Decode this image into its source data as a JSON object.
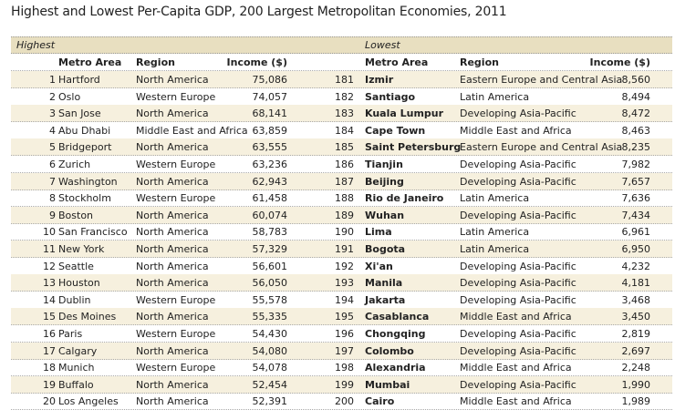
{
  "title": "Highest and Lowest Per-Capita GDP, 200 Largest Metropolitan Economies, 2011",
  "colors": {
    "band": "#e8dfc0",
    "shade": "#f6f0de"
  },
  "highest": {
    "label": "Highest",
    "headers": {
      "metro": "Metro Area",
      "region": "Region",
      "income": "Income ($)"
    },
    "rows": [
      {
        "rank": "1",
        "metro": "Hartford",
        "region": "North America",
        "income": "75,086"
      },
      {
        "rank": "2",
        "metro": "Oslo",
        "region": "Western Europe",
        "income": "74,057"
      },
      {
        "rank": "3",
        "metro": "San Jose",
        "region": "North America",
        "income": "68,141"
      },
      {
        "rank": "4",
        "metro": "Abu Dhabi",
        "region": "Middle East and Africa",
        "income": "63,859"
      },
      {
        "rank": "5",
        "metro": "Bridgeport",
        "region": "North America",
        "income": "63,555"
      },
      {
        "rank": "6",
        "metro": "Zurich",
        "region": "Western Europe",
        "income": "63,236"
      },
      {
        "rank": "7",
        "metro": "Washington",
        "region": "North America",
        "income": "62,943"
      },
      {
        "rank": "8",
        "metro": "Stockholm",
        "region": "Western Europe",
        "income": "61,458"
      },
      {
        "rank": "9",
        "metro": "Boston",
        "region": "North America",
        "income": "60,074"
      },
      {
        "rank": "10",
        "metro": "San Francisco",
        "region": "North America",
        "income": "58,783"
      },
      {
        "rank": "11",
        "metro": "New York",
        "region": "North America",
        "income": "57,329"
      },
      {
        "rank": "12",
        "metro": "Seattle",
        "region": "North America",
        "income": "56,601"
      },
      {
        "rank": "13",
        "metro": "Houston",
        "region": "North America",
        "income": "56,050"
      },
      {
        "rank": "14",
        "metro": "Dublin",
        "region": "Western Europe",
        "income": "55,578"
      },
      {
        "rank": "15",
        "metro": "Des Moines",
        "region": "North America",
        "income": "55,335"
      },
      {
        "rank": "16",
        "metro": "Paris",
        "region": "Western Europe",
        "income": "54,430"
      },
      {
        "rank": "17",
        "metro": "Calgary",
        "region": "North America",
        "income": "54,080"
      },
      {
        "rank": "18",
        "metro": "Munich",
        "region": "Western Europe",
        "income": "54,078"
      },
      {
        "rank": "19",
        "metro": "Buffalo",
        "region": "North America",
        "income": "52,454"
      },
      {
        "rank": "20",
        "metro": "Los Angeles",
        "region": "North America",
        "income": "52,391"
      }
    ]
  },
  "lowest": {
    "label": "Lowest",
    "headers": {
      "metro": "Metro Area",
      "region": "Region",
      "income": "Income ($)"
    },
    "rows": [
      {
        "rank": "181",
        "metro": "Izmir",
        "region": "Eastern Europe and Central Asia",
        "income": "8,560"
      },
      {
        "rank": "182",
        "metro": "Santiago",
        "region": "Latin America",
        "income": "8,494"
      },
      {
        "rank": "183",
        "metro": "Kuala Lumpur",
        "region": "Developing Asia-Pacific",
        "income": "8,472"
      },
      {
        "rank": "184",
        "metro": "Cape Town",
        "region": "Middle East and Africa",
        "income": "8,463"
      },
      {
        "rank": "185",
        "metro": "Saint Petersburg",
        "region": "Eastern Europe and Central Asia",
        "income": "8,235"
      },
      {
        "rank": "186",
        "metro": "Tianjin",
        "region": "Developing Asia-Pacific",
        "income": "7,982"
      },
      {
        "rank": "187",
        "metro": "Beijing",
        "region": "Developing Asia-Pacific",
        "income": "7,657"
      },
      {
        "rank": "188",
        "metro": "Rio de Janeiro",
        "region": "Latin America",
        "income": "7,636"
      },
      {
        "rank": "189",
        "metro": "Wuhan",
        "region": "Developing Asia-Pacific",
        "income": "7,434"
      },
      {
        "rank": "190",
        "metro": "Lima",
        "region": "Latin America",
        "income": "6,961"
      },
      {
        "rank": "191",
        "metro": "Bogota",
        "region": "Latin America",
        "income": "6,950"
      },
      {
        "rank": "192",
        "metro": "Xi'an",
        "region": "Developing Asia-Pacific",
        "income": "4,232"
      },
      {
        "rank": "193",
        "metro": "Manila",
        "region": "Developing Asia-Pacific",
        "income": "4,181"
      },
      {
        "rank": "194",
        "metro": "Jakarta",
        "region": "Developing Asia-Pacific",
        "income": "3,468"
      },
      {
        "rank": "195",
        "metro": "Casablanca",
        "region": "Middle East and Africa",
        "income": "3,450"
      },
      {
        "rank": "196",
        "metro": "Chongqing",
        "region": "Developing Asia-Pacific",
        "income": "2,819"
      },
      {
        "rank": "197",
        "metro": "Colombo",
        "region": "Developing Asia-Pacific",
        "income": "2,697"
      },
      {
        "rank": "198",
        "metro": "Alexandria",
        "region": "Middle East and Africa",
        "income": "2,248"
      },
      {
        "rank": "199",
        "metro": "Mumbai",
        "region": "Developing Asia-Pacific",
        "income": "1,990"
      },
      {
        "rank": "200",
        "metro": "Cairo",
        "region": "Middle East and Africa",
        "income": "1,989"
      }
    ]
  }
}
